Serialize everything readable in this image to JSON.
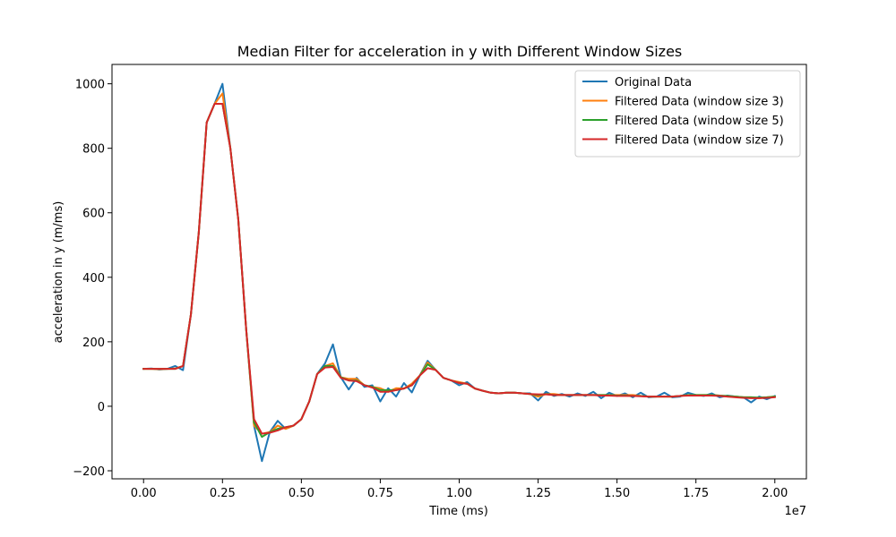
{
  "chart_data": {
    "type": "line",
    "title": "Median Filter for acceleration in y with Different Window Sizes",
    "xlabel": "Time (ms)",
    "ylabel": "acceleration in y (m/ms)",
    "x_offset_text": "1e7",
    "xlim": [
      -0.1,
      2.1
    ],
    "ylim": [
      -225,
      1060
    ],
    "x_ticks": [
      0.0,
      0.25,
      0.5,
      0.75,
      1.0,
      1.25,
      1.5,
      1.75,
      2.0
    ],
    "x_tick_labels": [
      "0.00",
      "0.25",
      "0.50",
      "0.75",
      "1.00",
      "1.25",
      "1.50",
      "1.75",
      "2.00"
    ],
    "y_ticks": [
      -200,
      0,
      200,
      400,
      600,
      800,
      1000
    ],
    "y_tick_labels": [
      "−200",
      "0",
      "200",
      "400",
      "600",
      "800",
      "1000"
    ],
    "grid": false,
    "legend_position": "top-right",
    "x": [
      0.0,
      0.025,
      0.05,
      0.075,
      0.1,
      0.125,
      0.15,
      0.175,
      0.2,
      0.225,
      0.25,
      0.275,
      0.3,
      0.325,
      0.35,
      0.375,
      0.4,
      0.425,
      0.45,
      0.475,
      0.5,
      0.525,
      0.55,
      0.575,
      0.6,
      0.625,
      0.65,
      0.675,
      0.7,
      0.725,
      0.75,
      0.775,
      0.8,
      0.825,
      0.85,
      0.875,
      0.9,
      0.925,
      0.95,
      0.975,
      1.0,
      1.025,
      1.05,
      1.075,
      1.1,
      1.125,
      1.15,
      1.175,
      1.2,
      1.225,
      1.25,
      1.275,
      1.3,
      1.325,
      1.35,
      1.375,
      1.4,
      1.425,
      1.45,
      1.475,
      1.5,
      1.525,
      1.55,
      1.575,
      1.6,
      1.625,
      1.65,
      1.675,
      1.7,
      1.725,
      1.75,
      1.775,
      1.8,
      1.825,
      1.85,
      1.875,
      1.9,
      1.925,
      1.95,
      1.975,
      2.0
    ],
    "series": [
      {
        "name": "Original Data",
        "color": "#1f77b4",
        "values": [
          116,
          117,
          114,
          116,
          125,
          112,
          285,
          540,
          880,
          938,
          1000,
          800,
          580,
          240,
          -60,
          -170,
          -80,
          -45,
          -70,
          -60,
          -40,
          15,
          100,
          133,
          192,
          90,
          52,
          88,
          60,
          65,
          15,
          56,
          30,
          72,
          43,
          95,
          141,
          113,
          88,
          80,
          65,
          75,
          55,
          48,
          42,
          40,
          42,
          42,
          40,
          40,
          18,
          45,
          32,
          38,
          30,
          40,
          32,
          45,
          25,
          42,
          32,
          40,
          28,
          42,
          28,
          30,
          42,
          28,
          30,
          42,
          35,
          32,
          40,
          28,
          33,
          30,
          28,
          12,
          30,
          22,
          32
        ]
      },
      {
        "name": "Filtered Data (window size 3)",
        "color": "#ff7f0e",
        "values": [
          116,
          116,
          115,
          116,
          117,
          125,
          285,
          540,
          880,
          938,
          970,
          800,
          580,
          240,
          -60,
          -85,
          -80,
          -60,
          -70,
          -60,
          -40,
          15,
          100,
          125,
          133,
          90,
          85,
          85,
          65,
          60,
          56,
          45,
          56,
          55,
          70,
          95,
          136,
          113,
          88,
          80,
          75,
          70,
          55,
          48,
          42,
          40,
          42,
          42,
          40,
          38,
          30,
          38,
          38,
          35,
          35,
          35,
          35,
          35,
          35,
          35,
          35,
          35,
          35,
          32,
          30,
          30,
          30,
          30,
          32,
          35,
          35,
          35,
          35,
          33,
          30,
          30,
          28,
          28,
          25,
          28,
          30
        ]
      },
      {
        "name": "Filtered Data (window size 5)",
        "color": "#2ca02c",
        "values": [
          116,
          116,
          116,
          116,
          116,
          125,
          285,
          540,
          880,
          938,
          938,
          800,
          580,
          240,
          -50,
          -95,
          -80,
          -70,
          -65,
          -60,
          -40,
          15,
          100,
          125,
          125,
          90,
          80,
          80,
          65,
          60,
          50,
          50,
          50,
          55,
          65,
          95,
          130,
          113,
          88,
          80,
          72,
          70,
          55,
          48,
          42,
          40,
          42,
          42,
          40,
          38,
          35,
          38,
          35,
          35,
          35,
          35,
          35,
          35,
          35,
          35,
          33,
          33,
          32,
          32,
          30,
          30,
          30,
          30,
          32,
          35,
          35,
          35,
          35,
          33,
          32,
          30,
          28,
          28,
          27,
          28,
          30
        ]
      },
      {
        "name": "Filtered Data (window size 7)",
        "color": "#d62728",
        "values": [
          116,
          116,
          116,
          116,
          116,
          125,
          285,
          540,
          880,
          938,
          938,
          800,
          580,
          240,
          -40,
          -85,
          -82,
          -75,
          -65,
          -60,
          -40,
          15,
          100,
          120,
          122,
          88,
          80,
          78,
          65,
          58,
          45,
          45,
          50,
          55,
          65,
          95,
          118,
          113,
          88,
          80,
          72,
          70,
          55,
          48,
          42,
          40,
          42,
          42,
          40,
          38,
          37,
          37,
          35,
          35,
          35,
          35,
          35,
          35,
          33,
          33,
          32,
          32,
          32,
          31,
          30,
          30,
          30,
          30,
          32,
          33,
          33,
          33,
          33,
          32,
          30,
          28,
          26,
          25,
          25,
          26,
          28
        ]
      }
    ]
  }
}
